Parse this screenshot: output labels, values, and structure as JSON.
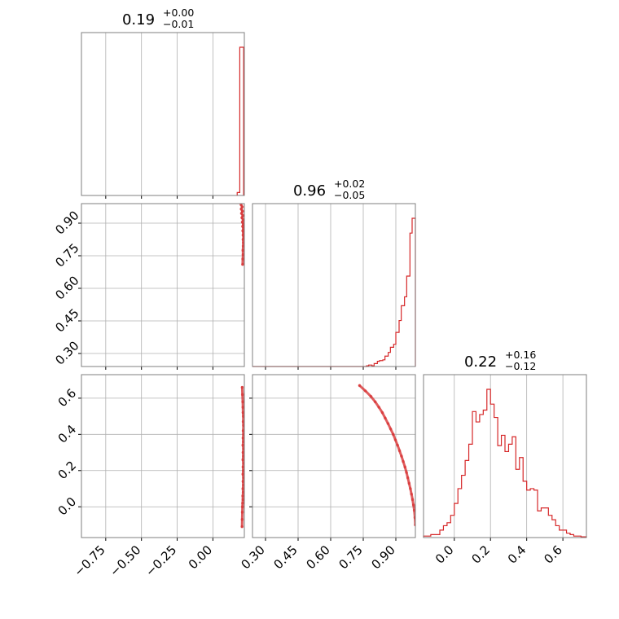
{
  "style": {
    "series_color": "#d62728",
    "grid_color": "#b0b0b0",
    "frame_color": "#7f7f7f"
  },
  "chart_data": {
    "type": "corner",
    "panels": [
      {
        "id": "p00",
        "kind": "hist",
        "row": 0,
        "col": 0,
        "title": {
          "value": "0.19",
          "plus": "+0.00",
          "minus": "−0.01"
        },
        "xlim": [
          -0.92,
          0.22
        ],
        "xticks": [
          -0.75,
          -0.5,
          -0.25,
          0.0
        ],
        "bins": [
          [
            0.17,
            0.188,
            0.02
          ],
          [
            0.188,
            0.215,
            1.0
          ]
        ]
      },
      {
        "id": "p10",
        "kind": "scatter",
        "row": 1,
        "col": 0,
        "xlim": [
          -0.92,
          0.22
        ],
        "ylim": [
          0.24,
          0.99
        ],
        "yticks": [
          0.3,
          0.45,
          0.6,
          0.75,
          0.9
        ],
        "ytick_labels": [
          "0.30",
          "0.45",
          "0.60",
          "0.75",
          "0.90"
        ],
        "xticks": [
          -0.75,
          -0.5,
          -0.25,
          0.0
        ],
        "points": [
          [
            0.197,
            0.985
          ],
          [
            0.205,
            0.975
          ],
          [
            0.198,
            0.965
          ],
          [
            0.207,
            0.955
          ],
          [
            0.2,
            0.945
          ],
          [
            0.21,
            0.935
          ],
          [
            0.203,
            0.925
          ],
          [
            0.212,
            0.915
          ],
          [
            0.206,
            0.905
          ],
          [
            0.213,
            0.895
          ],
          [
            0.208,
            0.885
          ],
          [
            0.214,
            0.875
          ],
          [
            0.209,
            0.865
          ],
          [
            0.214,
            0.855
          ],
          [
            0.211,
            0.845
          ],
          [
            0.215,
            0.835
          ],
          [
            0.211,
            0.825
          ],
          [
            0.213,
            0.81
          ],
          [
            0.212,
            0.795
          ],
          [
            0.21,
            0.775
          ],
          [
            0.211,
            0.755
          ],
          [
            0.209,
            0.735
          ],
          [
            0.208,
            0.71
          ]
        ]
      },
      {
        "id": "p11",
        "kind": "hist",
        "row": 1,
        "col": 1,
        "title": {
          "value": "0.96",
          "plus": "+0.02",
          "minus": "−0.05"
        },
        "xlim": [
          0.24,
          0.99
        ],
        "xticks": [
          0.3,
          0.45,
          0.6,
          0.75,
          0.9
        ],
        "bins": [
          [
            0.24,
            0.765,
            0.0
          ],
          [
            0.765,
            0.775,
            0.005
          ],
          [
            0.775,
            0.79,
            0.01
          ],
          [
            0.79,
            0.8,
            0.005
          ],
          [
            0.8,
            0.815,
            0.02
          ],
          [
            0.815,
            0.825,
            0.035
          ],
          [
            0.825,
            0.84,
            0.04
          ],
          [
            0.84,
            0.85,
            0.045
          ],
          [
            0.85,
            0.865,
            0.07
          ],
          [
            0.865,
            0.875,
            0.095
          ],
          [
            0.875,
            0.89,
            0.13
          ],
          [
            0.89,
            0.9,
            0.15
          ],
          [
            0.9,
            0.915,
            0.23
          ],
          [
            0.915,
            0.925,
            0.31
          ],
          [
            0.925,
            0.94,
            0.41
          ],
          [
            0.94,
            0.95,
            0.47
          ],
          [
            0.95,
            0.965,
            0.61
          ],
          [
            0.965,
            0.975,
            0.9
          ],
          [
            0.975,
            0.99,
            1.0
          ]
        ]
      },
      {
        "id": "p20",
        "kind": "scatter",
        "row": 2,
        "col": 0,
        "xlim": [
          -0.92,
          0.22
        ],
        "ylim": [
          -0.17,
          0.73
        ],
        "yticks": [
          0.0,
          0.2,
          0.4,
          0.6
        ],
        "ytick_labels": [
          "0.0",
          "0.2",
          "0.4",
          "0.6"
        ],
        "xticks": [
          -0.75,
          -0.5,
          -0.25,
          0.0
        ],
        "xtick_labels": [
          "−0.75",
          "−0.50",
          "−0.25",
          "0.00"
        ],
        "points": [
          [
            0.205,
            0.66
          ],
          [
            0.207,
            0.62
          ],
          [
            0.209,
            0.58
          ],
          [
            0.21,
            0.55
          ],
          [
            0.211,
            0.52
          ],
          [
            0.213,
            0.5
          ],
          [
            0.212,
            0.47
          ],
          [
            0.214,
            0.45
          ],
          [
            0.212,
            0.42
          ],
          [
            0.214,
            0.4
          ],
          [
            0.211,
            0.38
          ],
          [
            0.213,
            0.36
          ],
          [
            0.21,
            0.34
          ],
          [
            0.214,
            0.32
          ],
          [
            0.211,
            0.3
          ],
          [
            0.213,
            0.28
          ],
          [
            0.21,
            0.26
          ],
          [
            0.214,
            0.24
          ],
          [
            0.211,
            0.22
          ],
          [
            0.213,
            0.2
          ],
          [
            0.21,
            0.18
          ],
          [
            0.214,
            0.16
          ],
          [
            0.211,
            0.14
          ],
          [
            0.213,
            0.12
          ],
          [
            0.21,
            0.1
          ],
          [
            0.212,
            0.08
          ],
          [
            0.209,
            0.06
          ],
          [
            0.21,
            0.04
          ],
          [
            0.208,
            0.02
          ],
          [
            0.207,
            0.0
          ],
          [
            0.206,
            -0.03
          ],
          [
            0.205,
            -0.07
          ],
          [
            0.204,
            -0.11
          ]
        ]
      },
      {
        "id": "p21",
        "kind": "scatter",
        "row": 2,
        "col": 1,
        "xlim": [
          0.24,
          0.99
        ],
        "ylim": [
          -0.17,
          0.73
        ],
        "xticks": [
          0.3,
          0.45,
          0.6,
          0.75,
          0.9
        ],
        "xtick_labels": [
          "0.30",
          "0.45",
          "0.60",
          "0.75",
          "0.90"
        ],
        "yticks": [
          0.0,
          0.2,
          0.4,
          0.6
        ],
        "points": [
          [
            0.733,
            0.67
          ],
          [
            0.76,
            0.64
          ],
          [
            0.785,
            0.61
          ],
          [
            0.805,
            0.58
          ],
          [
            0.822,
            0.55
          ],
          [
            0.838,
            0.52
          ],
          [
            0.851,
            0.49
          ],
          [
            0.864,
            0.46
          ],
          [
            0.876,
            0.43
          ],
          [
            0.888,
            0.4
          ],
          [
            0.898,
            0.37
          ],
          [
            0.908,
            0.34
          ],
          [
            0.917,
            0.31
          ],
          [
            0.926,
            0.28
          ],
          [
            0.934,
            0.25
          ],
          [
            0.942,
            0.22
          ],
          [
            0.949,
            0.19
          ],
          [
            0.955,
            0.16
          ],
          [
            0.961,
            0.13
          ],
          [
            0.967,
            0.1
          ],
          [
            0.972,
            0.07
          ],
          [
            0.977,
            0.04
          ],
          [
            0.981,
            0.01
          ],
          [
            0.985,
            -0.02
          ],
          [
            0.988,
            -0.06
          ],
          [
            0.99,
            -0.1
          ]
        ]
      },
      {
        "id": "p22",
        "kind": "hist",
        "row": 2,
        "col": 2,
        "title": {
          "value": "0.22",
          "plus": "+0.16",
          "minus": "−0.12"
        },
        "xlim": [
          -0.17,
          0.73
        ],
        "xticks": [
          0.0,
          0.2,
          0.4,
          0.6
        ],
        "xtick_labels": [
          "0.0",
          "0.2",
          "0.4",
          "0.6"
        ],
        "bins": [
          [
            -0.17,
            -0.13,
            0.01
          ],
          [
            -0.13,
            -0.11,
            0.02
          ],
          [
            -0.11,
            -0.08,
            0.02
          ],
          [
            -0.08,
            -0.06,
            0.05
          ],
          [
            -0.06,
            -0.04,
            0.08
          ],
          [
            -0.04,
            -0.02,
            0.1
          ],
          [
            -0.02,
            0.0,
            0.15
          ],
          [
            0.0,
            0.02,
            0.23
          ],
          [
            0.02,
            0.04,
            0.33
          ],
          [
            0.04,
            0.06,
            0.42
          ],
          [
            0.06,
            0.08,
            0.52
          ],
          [
            0.08,
            0.1,
            0.63
          ],
          [
            0.1,
            0.12,
            0.85
          ],
          [
            0.12,
            0.14,
            0.78
          ],
          [
            0.14,
            0.16,
            0.83
          ],
          [
            0.16,
            0.18,
            0.86
          ],
          [
            0.18,
            0.2,
            1.0
          ],
          [
            0.2,
            0.22,
            0.9
          ],
          [
            0.22,
            0.24,
            0.81
          ],
          [
            0.24,
            0.26,
            0.62
          ],
          [
            0.26,
            0.28,
            0.69
          ],
          [
            0.28,
            0.3,
            0.58
          ],
          [
            0.3,
            0.32,
            0.63
          ],
          [
            0.32,
            0.34,
            0.68
          ],
          [
            0.34,
            0.36,
            0.46
          ],
          [
            0.36,
            0.38,
            0.54
          ],
          [
            0.38,
            0.4,
            0.38
          ],
          [
            0.4,
            0.42,
            0.32
          ],
          [
            0.42,
            0.44,
            0.33
          ],
          [
            0.44,
            0.46,
            0.32
          ],
          [
            0.46,
            0.48,
            0.18
          ],
          [
            0.48,
            0.5,
            0.2
          ],
          [
            0.5,
            0.52,
            0.2
          ],
          [
            0.52,
            0.54,
            0.15
          ],
          [
            0.54,
            0.56,
            0.12
          ],
          [
            0.56,
            0.58,
            0.08
          ],
          [
            0.58,
            0.6,
            0.05
          ],
          [
            0.6,
            0.62,
            0.05
          ],
          [
            0.62,
            0.64,
            0.03
          ],
          [
            0.64,
            0.66,
            0.02
          ],
          [
            0.66,
            0.7,
            0.01
          ],
          [
            0.7,
            0.73,
            0.005
          ]
        ]
      }
    ]
  }
}
